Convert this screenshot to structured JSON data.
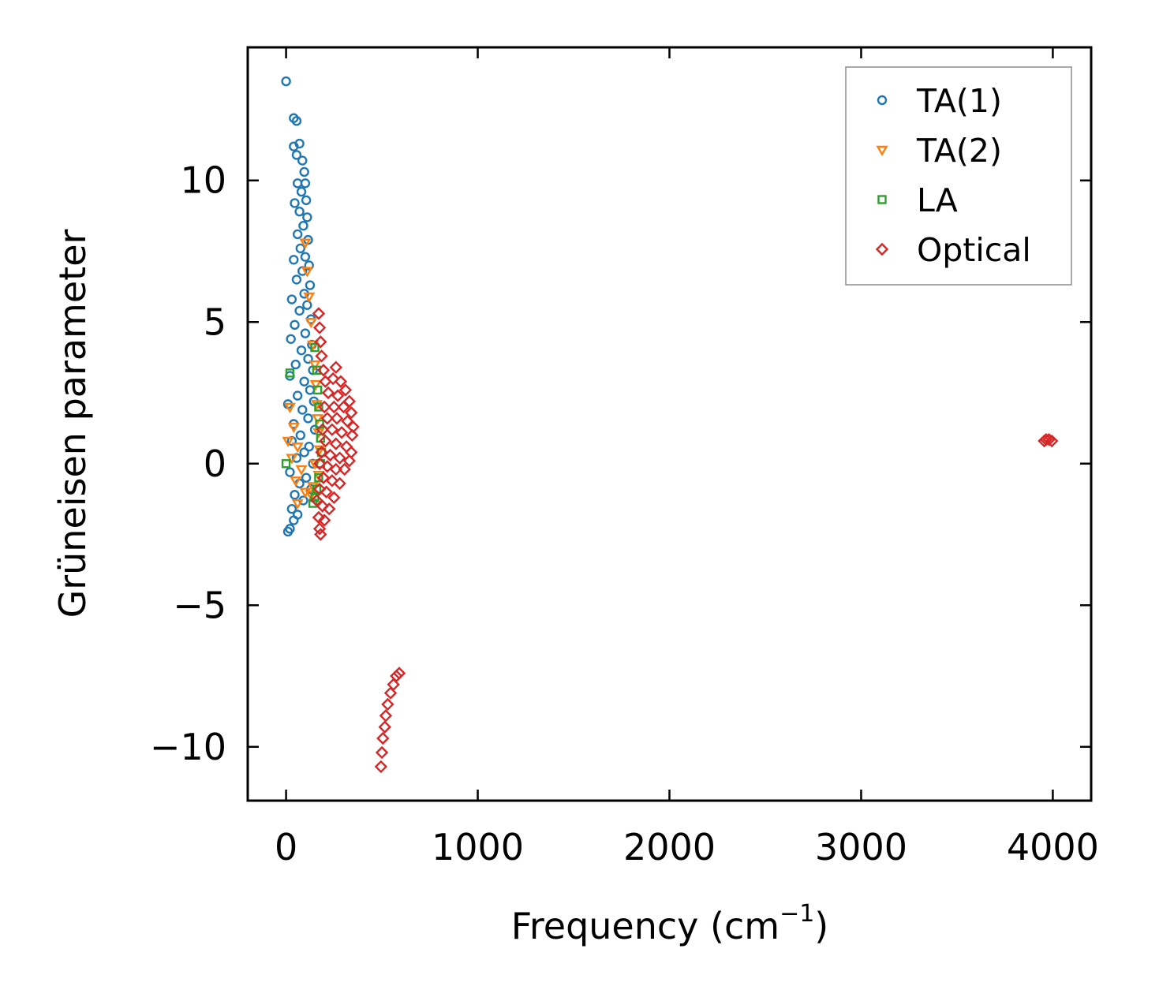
{
  "chart_data": {
    "type": "scatter",
    "title": "",
    "xlabel": "Frequency (cm",
    "xlabel_superscript": "−1",
    "xlabel_suffix": ")",
    "ylabel": "Grüneisen parameter",
    "xlim": [
      -200,
      4200
    ],
    "ylim": [
      -11.9,
      14.7
    ],
    "x_ticks": [
      0,
      1000,
      2000,
      3000,
      4000
    ],
    "x_tick_labels": [
      "0",
      "1000",
      "2000",
      "3000",
      "4000"
    ],
    "y_ticks": [
      -10,
      -5,
      0,
      5,
      10
    ],
    "y_tick_labels": [
      "−10",
      "−5",
      "0",
      "5",
      "10"
    ],
    "grid": false,
    "legend_position": "top-right",
    "series": [
      {
        "name": "TA(1)",
        "marker": "circle",
        "color": "#1f77b4",
        "points": [
          [
            0,
            13.5
          ],
          [
            40,
            12.2
          ],
          [
            55,
            12.1
          ],
          [
            40,
            11.2
          ],
          [
            70,
            11.3
          ],
          [
            55,
            10.9
          ],
          [
            85,
            10.7
          ],
          [
            95,
            10.3
          ],
          [
            100,
            9.9
          ],
          [
            60,
            9.9
          ],
          [
            45,
            9.2
          ],
          [
            80,
            9.6
          ],
          [
            105,
            9.3
          ],
          [
            70,
            8.9
          ],
          [
            110,
            8.7
          ],
          [
            90,
            8.4
          ],
          [
            60,
            8.1
          ],
          [
            115,
            7.9
          ],
          [
            75,
            7.6
          ],
          [
            100,
            7.3
          ],
          [
            40,
            7.2
          ],
          [
            120,
            7.0
          ],
          [
            85,
            6.8
          ],
          [
            55,
            6.5
          ],
          [
            125,
            6.3
          ],
          [
            95,
            6.0
          ],
          [
            30,
            5.8
          ],
          [
            110,
            5.6
          ],
          [
            70,
            5.4
          ],
          [
            130,
            5.1
          ],
          [
            45,
            4.9
          ],
          [
            100,
            4.6
          ],
          [
            25,
            4.4
          ],
          [
            135,
            4.2
          ],
          [
            80,
            4.0
          ],
          [
            115,
            3.7
          ],
          [
            50,
            3.5
          ],
          [
            140,
            3.3
          ],
          [
            20,
            3.1
          ],
          [
            95,
            2.9
          ],
          [
            125,
            2.6
          ],
          [
            60,
            2.4
          ],
          [
            145,
            2.2
          ],
          [
            10,
            2.1
          ],
          [
            85,
            1.9
          ],
          [
            115,
            1.6
          ],
          [
            40,
            1.4
          ],
          [
            150,
            1.2
          ],
          [
            75,
            1.0
          ],
          [
            30,
            0.8
          ],
          [
            120,
            0.6
          ],
          [
            95,
            0.4
          ],
          [
            55,
            0.2
          ],
          [
            140,
            0.0
          ],
          [
            20,
            -0.3
          ],
          [
            105,
            -0.5
          ],
          [
            70,
            -0.7
          ],
          [
            130,
            -0.9
          ],
          [
            45,
            -1.1
          ],
          [
            90,
            -1.3
          ],
          [
            30,
            -1.6
          ],
          [
            60,
            -1.8
          ],
          [
            40,
            -2.0
          ],
          [
            20,
            -2.3
          ],
          [
            10,
            -2.4
          ]
        ]
      },
      {
        "name": "TA(2)",
        "marker": "triangle-down",
        "color": "#ff7f0e",
        "points": [
          [
            100,
            7.8
          ],
          [
            110,
            6.8
          ],
          [
            120,
            5.9
          ],
          [
            130,
            5.0
          ],
          [
            140,
            4.2
          ],
          [
            150,
            3.5
          ],
          [
            155,
            2.8
          ],
          [
            160,
            2.1
          ],
          [
            20,
            2.0
          ],
          [
            165,
            1.6
          ],
          [
            40,
            1.3
          ],
          [
            170,
            1.1
          ],
          [
            10,
            0.8
          ],
          [
            60,
            0.6
          ],
          [
            175,
            0.5
          ],
          [
            30,
            0.2
          ],
          [
            150,
            0.0
          ],
          [
            80,
            -0.2
          ],
          [
            170,
            -0.4
          ],
          [
            50,
            -0.6
          ],
          [
            140,
            -0.8
          ],
          [
            100,
            -1.0
          ],
          [
            130,
            -1.1
          ],
          [
            60,
            -1.4
          ]
        ]
      },
      {
        "name": "LA",
        "marker": "square",
        "color": "#2ca02c",
        "points": [
          [
            0,
            0.0
          ],
          [
            20,
            3.2
          ],
          [
            150,
            4.1
          ],
          [
            160,
            3.3
          ],
          [
            165,
            2.6
          ],
          [
            170,
            2.0
          ],
          [
            175,
            1.4
          ],
          [
            180,
            0.9
          ],
          [
            185,
            0.4
          ],
          [
            180,
            0.0
          ],
          [
            170,
            -0.5
          ],
          [
            160,
            -0.9
          ],
          [
            150,
            -1.2
          ],
          [
            140,
            -1.4
          ]
        ]
      },
      {
        "name": "Optical",
        "marker": "diamond",
        "color": "#d62728",
        "points": [
          [
            170,
            5.3
          ],
          [
            175,
            4.8
          ],
          [
            180,
            4.3
          ],
          [
            185,
            3.8
          ],
          [
            195,
            3.3
          ],
          [
            260,
            3.4
          ],
          [
            205,
            2.9
          ],
          [
            245,
            3.0
          ],
          [
            285,
            2.9
          ],
          [
            310,
            2.6
          ],
          [
            220,
            2.5
          ],
          [
            270,
            2.4
          ],
          [
            330,
            2.2
          ],
          [
            200,
            2.0
          ],
          [
            250,
            2.0
          ],
          [
            300,
            2.0
          ],
          [
            340,
            1.8
          ],
          [
            215,
            1.6
          ],
          [
            265,
            1.6
          ],
          [
            320,
            1.5
          ],
          [
            350,
            1.3
          ],
          [
            190,
            1.2
          ],
          [
            240,
            1.2
          ],
          [
            290,
            1.1
          ],
          [
            345,
            1.0
          ],
          [
            205,
            0.8
          ],
          [
            260,
            0.7
          ],
          [
            315,
            0.6
          ],
          [
            340,
            0.4
          ],
          [
            185,
            0.4
          ],
          [
            230,
            0.3
          ],
          [
            280,
            0.2
          ],
          [
            330,
            0.1
          ],
          [
            175,
            0.0
          ],
          [
            215,
            -0.1
          ],
          [
            260,
            -0.2
          ],
          [
            305,
            -0.2
          ],
          [
            195,
            -0.5
          ],
          [
            240,
            -0.6
          ],
          [
            280,
            -0.7
          ],
          [
            175,
            -0.9
          ],
          [
            210,
            -1.0
          ],
          [
            250,
            -1.2
          ],
          [
            160,
            -1.3
          ],
          [
            190,
            -1.5
          ],
          [
            225,
            -1.6
          ],
          [
            170,
            -1.9
          ],
          [
            200,
            -2.0
          ],
          [
            175,
            -2.3
          ],
          [
            180,
            -2.5
          ],
          [
            495,
            -10.7
          ],
          [
            500,
            -10.2
          ],
          [
            505,
            -9.7
          ],
          [
            515,
            -9.3
          ],
          [
            520,
            -8.9
          ],
          [
            530,
            -8.5
          ],
          [
            545,
            -8.1
          ],
          [
            560,
            -7.8
          ],
          [
            575,
            -7.5
          ],
          [
            590,
            -7.4
          ],
          [
            3955,
            0.8
          ],
          [
            3965,
            0.85
          ],
          [
            3980,
            0.85
          ],
          [
            3995,
            0.8
          ]
        ]
      }
    ]
  }
}
